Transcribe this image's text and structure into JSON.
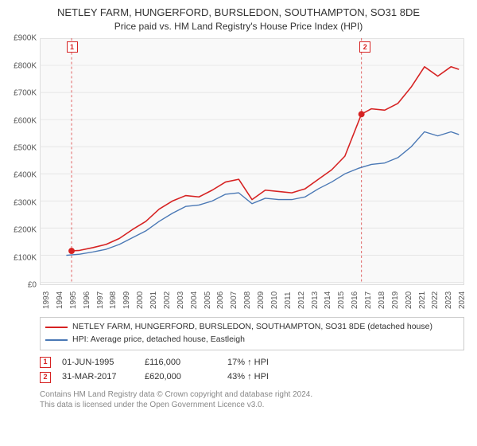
{
  "title": "NETLEY FARM, HUNGERFORD, BURSLEDON, SOUTHAMPTON, SO31 8DE",
  "subtitle": "Price paid vs. HM Land Registry's House Price Index (HPI)",
  "chart": {
    "type": "line",
    "background_color": "#f9f9f9",
    "grid_color": "#e6e6e6",
    "border_color": "#dddddd",
    "x": {
      "start": 1993,
      "end": 2025,
      "tick_step": 1,
      "labels": [
        "1993",
        "1994",
        "1995",
        "1996",
        "1997",
        "1998",
        "1999",
        "2000",
        "2001",
        "2002",
        "2003",
        "2004",
        "2005",
        "2006",
        "2007",
        "2008",
        "2009",
        "2010",
        "2011",
        "2012",
        "2013",
        "2014",
        "2015",
        "2016",
        "2017",
        "2018",
        "2019",
        "2020",
        "2021",
        "2022",
        "2023",
        "2024"
      ]
    },
    "y": {
      "min": 0,
      "max": 900000,
      "tick_step": 100000,
      "labels": [
        "£0",
        "£100K",
        "£200K",
        "£300K",
        "£400K",
        "£500K",
        "£600K",
        "£700K",
        "£800K",
        "£900K"
      ]
    },
    "series": [
      {
        "name": "NETLEY FARM, HUNGERFORD, BURSLEDON, SOUTHAMPTON, SO31 8DE (detached house)",
        "color": "#d62222",
        "line_width": 1.6,
        "points": [
          [
            1995.4,
            116000
          ],
          [
            1996,
            118000
          ],
          [
            1997,
            128000
          ],
          [
            1998,
            140000
          ],
          [
            1999,
            162000
          ],
          [
            2000,
            195000
          ],
          [
            2001,
            225000
          ],
          [
            2002,
            270000
          ],
          [
            2003,
            300000
          ],
          [
            2004,
            320000
          ],
          [
            2005,
            315000
          ],
          [
            2006,
            340000
          ],
          [
            2007,
            370000
          ],
          [
            2008,
            380000
          ],
          [
            2009,
            305000
          ],
          [
            2010,
            340000
          ],
          [
            2011,
            335000
          ],
          [
            2012,
            330000
          ],
          [
            2013,
            345000
          ],
          [
            2014,
            380000
          ],
          [
            2015,
            415000
          ],
          [
            2016,
            465000
          ],
          [
            2017.25,
            620000
          ],
          [
            2018,
            640000
          ],
          [
            2019,
            635000
          ],
          [
            2020,
            660000
          ],
          [
            2021,
            720000
          ],
          [
            2022,
            795000
          ],
          [
            2023,
            760000
          ],
          [
            2024,
            795000
          ],
          [
            2024.6,
            785000
          ]
        ]
      },
      {
        "name": "HPI: Average price, detached house, Eastleigh",
        "color": "#4a78b5",
        "line_width": 1.4,
        "points": [
          [
            1995,
            100000
          ],
          [
            1996,
            104000
          ],
          [
            1997,
            112000
          ],
          [
            1998,
            122000
          ],
          [
            1999,
            140000
          ],
          [
            2000,
            165000
          ],
          [
            2001,
            190000
          ],
          [
            2002,
            225000
          ],
          [
            2003,
            255000
          ],
          [
            2004,
            280000
          ],
          [
            2005,
            285000
          ],
          [
            2006,
            300000
          ],
          [
            2007,
            325000
          ],
          [
            2008,
            330000
          ],
          [
            2009,
            290000
          ],
          [
            2010,
            310000
          ],
          [
            2011,
            305000
          ],
          [
            2012,
            305000
          ],
          [
            2013,
            315000
          ],
          [
            2014,
            345000
          ],
          [
            2015,
            370000
          ],
          [
            2016,
            400000
          ],
          [
            2017,
            420000
          ],
          [
            2018,
            435000
          ],
          [
            2019,
            440000
          ],
          [
            2020,
            460000
          ],
          [
            2021,
            500000
          ],
          [
            2022,
            555000
          ],
          [
            2023,
            540000
          ],
          [
            2024,
            555000
          ],
          [
            2024.6,
            545000
          ]
        ]
      }
    ],
    "event_markers": [
      {
        "n": "1",
        "x": 1995.4,
        "y": 116000,
        "color": "#d62222"
      },
      {
        "n": "2",
        "x": 2017.25,
        "y": 620000,
        "color": "#d62222"
      }
    ]
  },
  "annotations": [
    {
      "n": "1",
      "color": "#d62222",
      "date": "01-JUN-1995",
      "price": "£116,000",
      "delta": "17% ↑ HPI"
    },
    {
      "n": "2",
      "color": "#d62222",
      "date": "31-MAR-2017",
      "price": "£620,000",
      "delta": "43% ↑ HPI"
    }
  ],
  "credits": [
    "Contains HM Land Registry data © Crown copyright and database right 2024.",
    "This data is licensed under the Open Government Licence v3.0."
  ]
}
